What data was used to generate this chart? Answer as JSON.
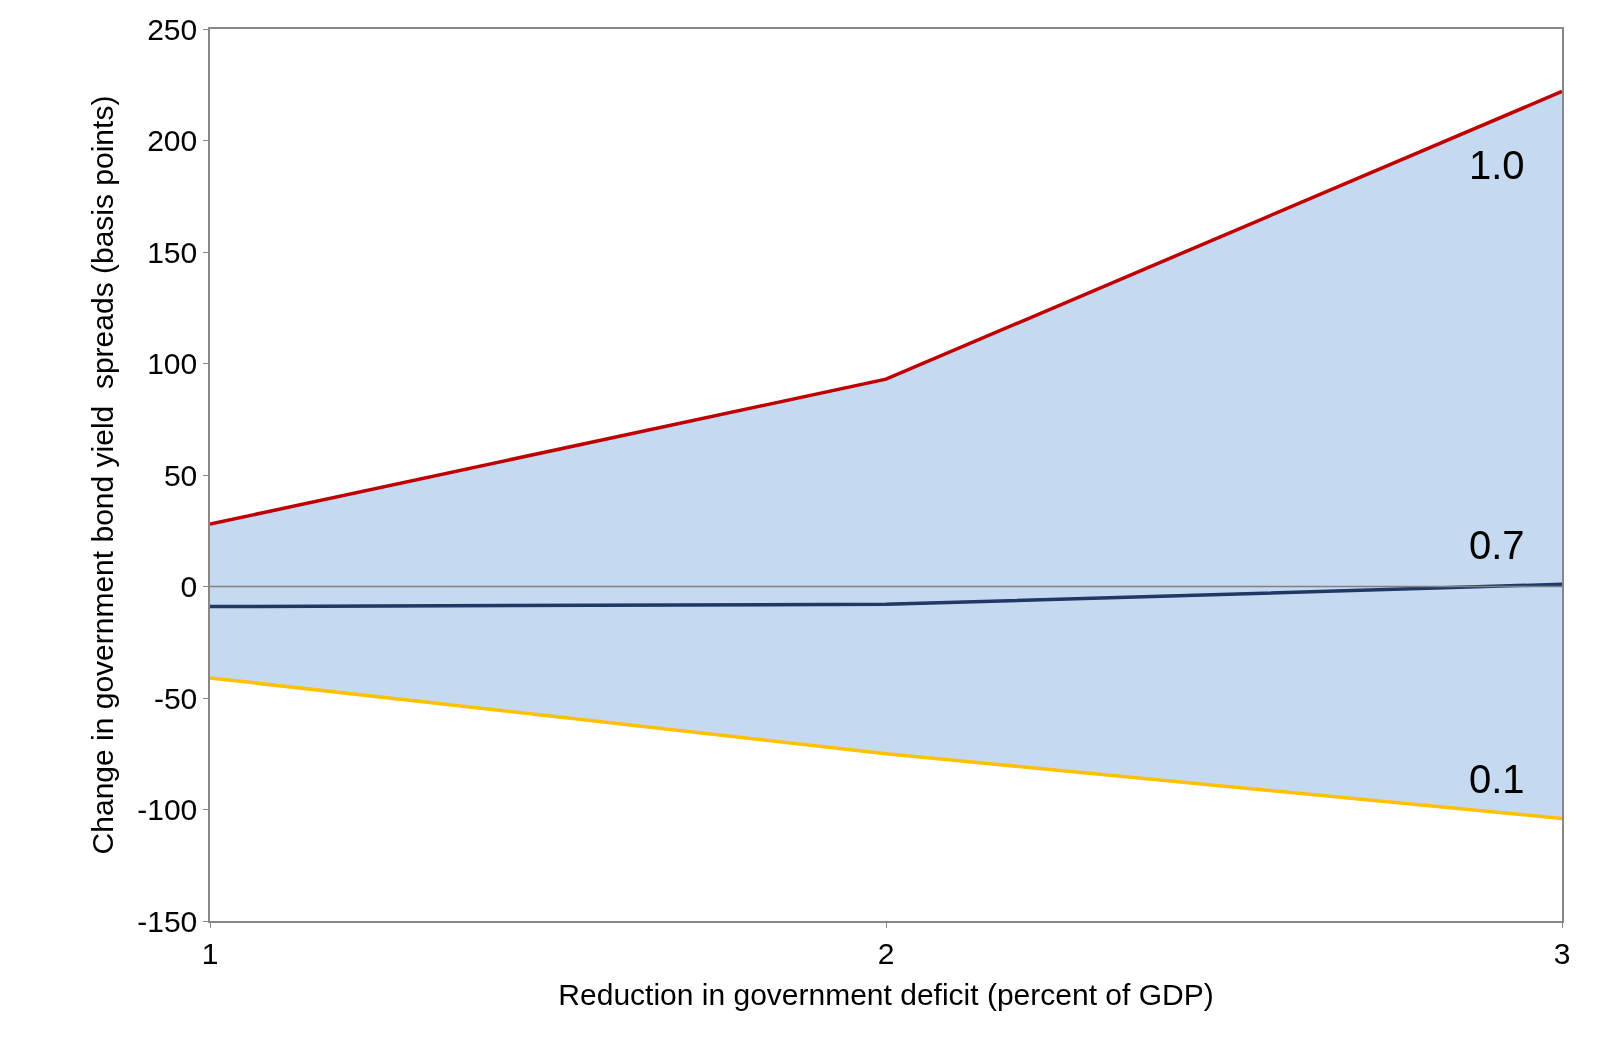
{
  "chart_data": {
    "type": "line",
    "xlabel": "Reduction in government deficit (percent of GDP)",
    "ylabel": "Change in government bond yield  spreads (basis points)",
    "x": [
      1,
      2,
      3
    ],
    "series": [
      {
        "name": "1.0",
        "color": "#c00000",
        "values": [
          28,
          93,
          222
        ]
      },
      {
        "name": "0.7",
        "color": "#1f3864",
        "values": [
          -9,
          -8,
          1
        ],
        "lower": [
          -41,
          -75,
          -104
        ],
        "upper": [
          28,
          93,
          222
        ]
      },
      {
        "name": "0.1",
        "color": "#ffc000",
        "values": [
          -41,
          -75,
          -104
        ]
      }
    ],
    "xlim": [
      1,
      3
    ],
    "xticks": [
      1,
      2,
      3
    ],
    "ylim": [
      -150,
      250
    ],
    "yticks": [
      -150,
      -100,
      -50,
      0,
      50,
      100,
      150,
      200,
      250
    ],
    "ref_lines": [
      {
        "axis": "y",
        "value": 0,
        "color": "#808080"
      }
    ],
    "legend": false,
    "marker": "none",
    "line_style": "solid"
  }
}
